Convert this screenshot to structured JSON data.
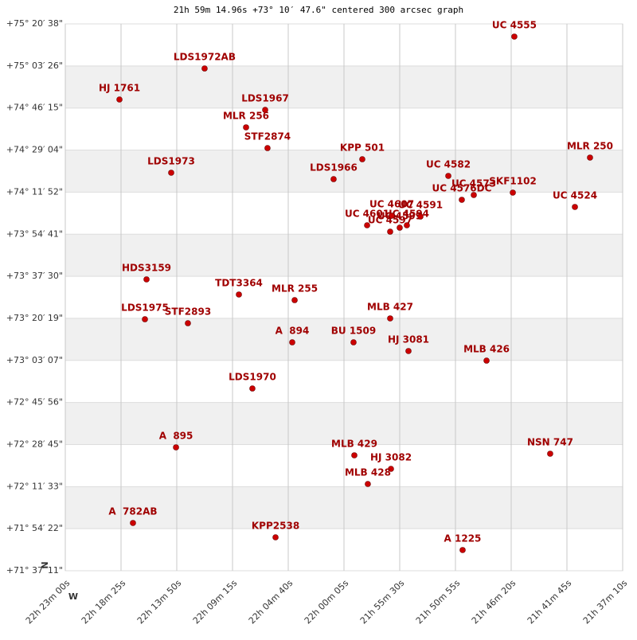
{
  "chart_data": {
    "type": "scatter",
    "title": "21h 59m 14.96s +73° 10′ 47.6\" centered 300 arcsec graph",
    "x_label": "W",
    "y_label": "N",
    "xlim": [
      22.383333,
      21.619444
    ],
    "ylim": [
      71.619722,
      75.343889
    ],
    "xticks": [
      {
        "value": 22.383333,
        "label": "22h 23m 00s"
      },
      {
        "value": 22.306944,
        "label": "22h 18m 25s"
      },
      {
        "value": 22.230556,
        "label": "22h 13m 50s"
      },
      {
        "value": 22.154167,
        "label": "22h 09m 15s"
      },
      {
        "value": 22.077778,
        "label": "22h 04m 40s"
      },
      {
        "value": 22.001389,
        "label": "22h 00m 05s"
      },
      {
        "value": 21.925,
        "label": "21h 55m 30s"
      },
      {
        "value": 21.848611,
        "label": "21h 50m 55s"
      },
      {
        "value": 21.772222,
        "label": "21h 46m 20s"
      },
      {
        "value": 21.695833,
        "label": "21h 41m 45s"
      },
      {
        "value": 21.619444,
        "label": "21h 37m 10s"
      }
    ],
    "yticks": [
      {
        "value": 71.619722,
        "label": "+71° 37′ 11\""
      },
      {
        "value": 71.906111,
        "label": "+71° 54′ 22\""
      },
      {
        "value": 72.1925,
        "label": "+72° 11′ 33\""
      },
      {
        "value": 72.479167,
        "label": "+72° 28′ 45\""
      },
      {
        "value": 72.765556,
        "label": "+72° 45′ 56\""
      },
      {
        "value": 73.051944,
        "label": "+73° 03′ 07\""
      },
      {
        "value": 73.338611,
        "label": "+73° 20′ 19\""
      },
      {
        "value": 73.625,
        "label": "+73° 37′ 30\""
      },
      {
        "value": 73.911389,
        "label": "+73° 54′ 41\""
      },
      {
        "value": 74.197778,
        "label": "+74° 11′ 52\""
      },
      {
        "value": 74.484444,
        "label": "+74° 29′ 04\""
      },
      {
        "value": 74.770833,
        "label": "+74° 46′ 15\""
      },
      {
        "value": 75.057222,
        "label": "+75° 03′ 26\""
      },
      {
        "value": 75.343889,
        "label": "+75° 20′ 38\""
      }
    ],
    "grid": true,
    "series": [
      {
        "color": "#cc0000",
        "labels": [
          "UC 4555",
          "LDS1972AB",
          "HJ 1761",
          "LDS1967",
          "MLR 256",
          "STF2874",
          "KPP 501",
          "MLR 250",
          "LDS1973",
          "LDS1966",
          "UC 4582",
          "SKF1102",
          "UC 4573",
          "UC 4576DC",
          "UC 4524",
          "UC 4601",
          "UC 4597",
          "UC 4599",
          "UC 4594",
          "UC 4591",
          "UC 4607",
          "HDS3159",
          "TDT3364",
          "MLR 255",
          "LDS1975",
          "STF2893",
          "MLB 427",
          "A  894",
          "BU 1509",
          "HJ 3081",
          "MLB 426",
          "LDS1970",
          "A  895",
          "NSN 747",
          "MLB 429",
          "HJ 3082",
          "MLB 428",
          "A  782AB",
          "KPP2538",
          "A 1225"
        ],
        "x": [
          21.7679,
          22.1924,
          22.3091,
          22.1094,
          22.1356,
          22.1062,
          21.9763,
          21.6642,
          22.2382,
          22.0156,
          21.8584,
          21.77,
          21.8235,
          21.8399,
          21.6849,
          21.9697,
          21.9381,
          21.925,
          21.9152,
          21.8966,
          21.9359,
          22.272,
          22.1454,
          22.069,
          22.2742,
          22.2153,
          21.9381,
          22.0723,
          21.9883,
          21.913,
          21.806,
          22.1269,
          22.2316,
          21.7188,
          21.9872,
          21.937,
          21.9687,
          22.2906,
          22.0952,
          21.8388
        ],
        "values": [
          75.2572,
          75.0403,
          74.8289,
          74.7584,
          74.6392,
          74.4982,
          74.4223,
          74.4332,
          74.3302,
          74.2868,
          74.3085,
          74.1947,
          74.1784,
          74.1459,
          74.0971,
          73.9724,
          73.929,
          73.9561,
          73.9724,
          74.032,
          74.0375,
          73.6038,
          73.5008,
          73.4628,
          73.3327,
          73.3056,
          73.3382,
          73.1755,
          73.1755,
          73.1159,
          73.0508,
          72.8611,
          72.46,
          72.4166,
          72.4058,
          72.3136,
          72.2106,
          71.945,
          71.8474,
          71.7607
        ]
      }
    ]
  }
}
